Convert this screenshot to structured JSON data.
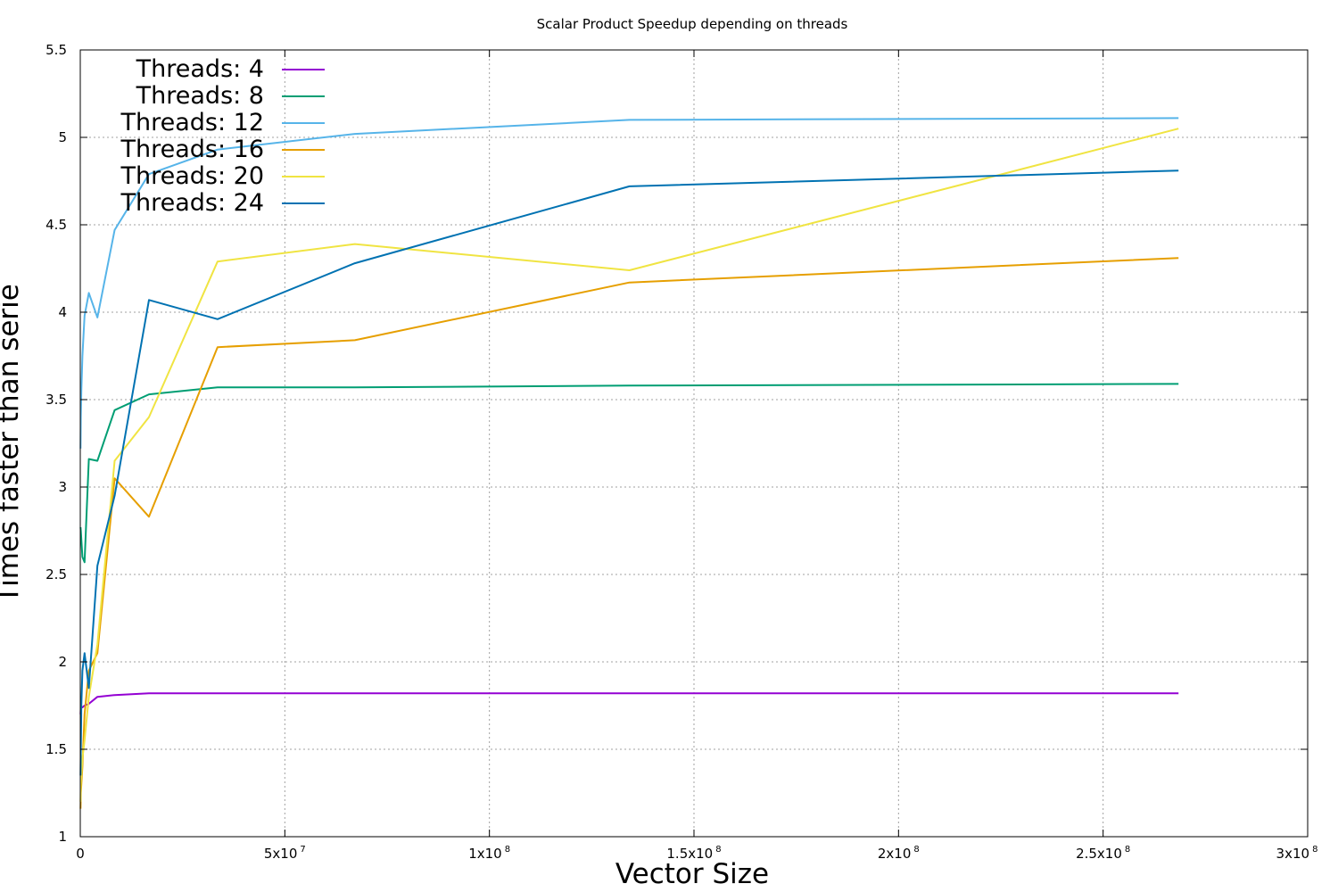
{
  "chart_data": {
    "type": "line",
    "title": "Scalar Product Speedup depending on threads",
    "xlabel": "Vector Size",
    "ylabel": "Times faster than serie",
    "xlim": [
      0,
      300000000
    ],
    "ylim": [
      1,
      5.5
    ],
    "grid": true,
    "legend_position": "top-left",
    "x_ticks": [
      {
        "value": 0,
        "base": "0",
        "exp": ""
      },
      {
        "value": 50000000,
        "base": "5x10",
        "exp": "7"
      },
      {
        "value": 100000000,
        "base": "1x10",
        "exp": "8"
      },
      {
        "value": 150000000,
        "base": "1.5x10",
        "exp": "8"
      },
      {
        "value": 200000000,
        "base": "2x10",
        "exp": "8"
      },
      {
        "value": 250000000,
        "base": "2.5x10",
        "exp": "8"
      },
      {
        "value": 300000000,
        "base": "3x10",
        "exp": "8"
      }
    ],
    "y_ticks": [
      {
        "value": 1,
        "label": "1"
      },
      {
        "value": 1.5,
        "label": "1.5"
      },
      {
        "value": 2,
        "label": "2"
      },
      {
        "value": 2.5,
        "label": "2.5"
      },
      {
        "value": 3,
        "label": "3"
      },
      {
        "value": 3.5,
        "label": "3.5"
      },
      {
        "value": 4,
        "label": "4"
      },
      {
        "value": 4.5,
        "label": "4.5"
      },
      {
        "value": 5,
        "label": "5"
      },
      {
        "value": 5.5,
        "label": "5.5"
      }
    ],
    "x": [
      65536,
      131072,
      262144,
      524288,
      1048576,
      2097152,
      4194304,
      8388608,
      16777216,
      33554432,
      67108864,
      134217728,
      268435456
    ],
    "series": [
      {
        "name": "Threads: 4",
        "color": "#9400d3",
        "values": [
          1.7,
          1.74,
          1.74,
          1.74,
          1.75,
          1.76,
          1.8,
          1.81,
          1.82,
          1.82,
          1.82,
          1.82,
          1.82
        ]
      },
      {
        "name": "Threads: 8",
        "color": "#009e73",
        "values": [
          2.77,
          2.75,
          2.7,
          2.6,
          2.57,
          3.16,
          3.15,
          3.44,
          3.53,
          3.57,
          3.57,
          3.58,
          3.59
        ]
      },
      {
        "name": "Threads: 12",
        "color": "#56b4e9",
        "values": [
          3.22,
          3.4,
          3.55,
          3.75,
          3.98,
          4.11,
          3.97,
          4.47,
          4.79,
          4.93,
          5.02,
          5.1,
          5.11
        ]
      },
      {
        "name": "Threads: 16",
        "color": "#e69f00",
        "values": [
          1.16,
          1.25,
          1.3,
          1.4,
          1.7,
          1.95,
          2.05,
          3.05,
          2.83,
          3.8,
          3.84,
          4.17,
          4.31
        ]
      },
      {
        "name": "Threads: 20",
        "color": "#f0e442",
        "values": [
          1.2,
          1.3,
          1.35,
          1.45,
          1.55,
          1.8,
          2.1,
          3.15,
          3.4,
          4.29,
          4.39,
          4.24,
          5.05
        ]
      },
      {
        "name": "Threads: 24",
        "color": "#0072b2",
        "values": [
          1.35,
          1.5,
          1.75,
          1.95,
          2.05,
          1.85,
          2.55,
          2.95,
          4.07,
          3.96,
          4.28,
          4.72,
          4.81
        ]
      }
    ]
  }
}
